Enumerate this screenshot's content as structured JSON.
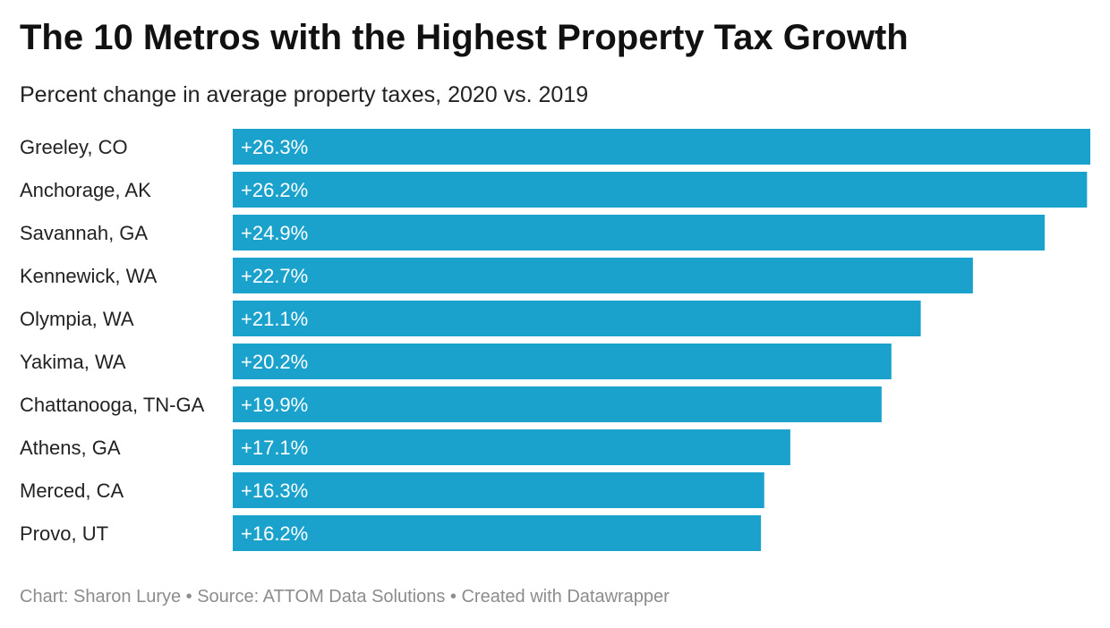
{
  "chart_data": {
    "type": "bar",
    "orientation": "horizontal",
    "title": "The 10 Metros with the Highest Property Tax Growth",
    "subtitle": "Percent change in average property taxes, 2020 vs. 2019",
    "categories": [
      "Greeley, CO",
      "Anchorage, AK",
      "Savannah, GA",
      "Kennewick, WA",
      "Olympia, WA",
      "Yakima, WA",
      "Chattanooga, TN-GA",
      "Athens, GA",
      "Merced, CA",
      "Provo, UT"
    ],
    "values": [
      26.3,
      26.2,
      24.9,
      22.7,
      21.1,
      20.2,
      19.9,
      17.1,
      16.3,
      16.2
    ],
    "data_labels": [
      "+26.3%",
      "+26.2%",
      "+24.9%",
      "+22.7%",
      "+21.1%",
      "+20.2%",
      "+19.9%",
      "+17.1%",
      "+16.3%",
      "+16.2%"
    ],
    "xlim": [
      0,
      26.3
    ],
    "grid": false,
    "bar_color": "#1aa2cd",
    "label_color": "#ffffff"
  },
  "footer": "Chart: Sharon Lurye • Source: ATTOM Data Solutions • Created with Datawrapper"
}
